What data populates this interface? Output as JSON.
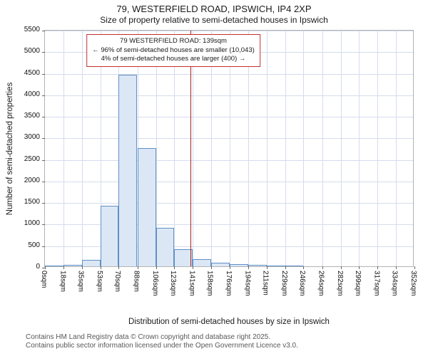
{
  "title": "79, WESTERFIELD ROAD, IPSWICH, IP4 2XP",
  "subtitle": "Size of property relative to semi-detached houses in Ipswich",
  "annotation": {
    "line1": "79 WESTERFIELD ROAD: 139sqm",
    "line2": "← 96% of semi-detached houses are smaller (10,043)",
    "line3": "4% of semi-detached houses are larger (400) →"
  },
  "footer": {
    "line1": "Contains HM Land Registry data © Crown copyright and database right 2025.",
    "line2": "Contains public sector information licensed under the Open Government Licence v3.0."
  },
  "chart_data": {
    "type": "bar",
    "title": "79, WESTERFIELD ROAD, IPSWICH, IP4 2XP — Size of property relative to semi-detached houses in Ipswich",
    "xlabel": "Distribution of semi-detached houses by size in Ipswich",
    "ylabel": "Number of semi-detached properties",
    "bin_edges": [
      0,
      18,
      35,
      53,
      70,
      88,
      106,
      123,
      141,
      158,
      176,
      194,
      211,
      229,
      246,
      264,
      282,
      299,
      317,
      334,
      352
    ],
    "x_tick_labels": [
      "0sqm",
      "18sqm",
      "35sqm",
      "53sqm",
      "70sqm",
      "88sqm",
      "106sqm",
      "123sqm",
      "141sqm",
      "158sqm",
      "176sqm",
      "194sqm",
      "211sqm",
      "229sqm",
      "246sqm",
      "264sqm",
      "282sqm",
      "299sqm",
      "317sqm",
      "334sqm",
      "352sqm"
    ],
    "values": [
      15,
      30,
      150,
      1400,
      4450,
      2750,
      900,
      400,
      170,
      80,
      50,
      30,
      10,
      10,
      4,
      2,
      0,
      0,
      0,
      0
    ],
    "ylim": [
      0,
      5500
    ],
    "y_ticks": [
      0,
      500,
      1000,
      1500,
      2000,
      2500,
      3000,
      3500,
      4000,
      4500,
      5000,
      5500
    ],
    "x_range": [
      0,
      352
    ],
    "grid": true,
    "legend": "none",
    "marker": {
      "value": 139,
      "label": "79 WESTERFIELD ROAD: 139sqm",
      "color": "#a82222"
    },
    "bar_fill": "#dce7f5",
    "bar_stroke": "#6090c8"
  }
}
